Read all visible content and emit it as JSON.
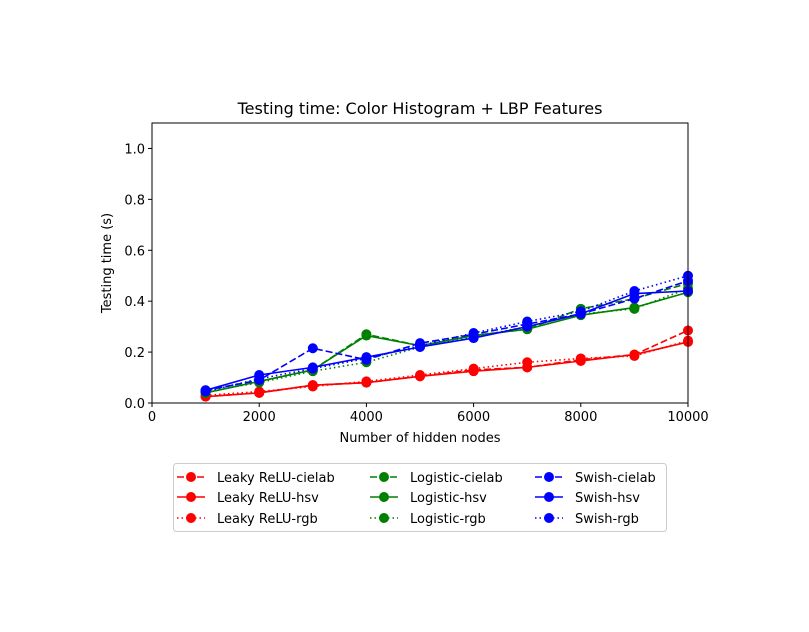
{
  "chart_data": {
    "type": "line",
    "title": "Testing time: Color Histogram + LBP Features",
    "xlabel": "Number of hidden nodes",
    "ylabel": "Testing time (s)",
    "xlim": [
      0,
      10000
    ],
    "ylim": [
      0,
      1.1
    ],
    "xticks": [
      "0",
      "2000",
      "4000",
      "6000",
      "8000",
      "10000"
    ],
    "yticks": [
      "0.0",
      "0.2",
      "0.4",
      "0.6",
      "0.8",
      "1.0"
    ],
    "grid": false,
    "legend_position": "bottom-center, below plot, 3 columns",
    "x": [
      1000,
      2000,
      3000,
      4000,
      5000,
      6000,
      7000,
      8000,
      9000,
      10000
    ],
    "series": [
      {
        "name": "Leaky ReLU-cielab",
        "color": "#ff0000",
        "linestyle": "dashed",
        "values": [
          0.025,
          0.04,
          0.07,
          0.08,
          0.105,
          0.13,
          0.14,
          0.17,
          0.19,
          0.285
        ]
      },
      {
        "name": "Leaky ReLU-hsv",
        "color": "#ff0000",
        "linestyle": "solid",
        "values": [
          0.025,
          0.04,
          0.07,
          0.08,
          0.105,
          0.125,
          0.14,
          0.165,
          0.19,
          0.24
        ]
      },
      {
        "name": "Leaky ReLU-rgb",
        "color": "#ff0000",
        "linestyle": "dotted",
        "values": [
          0.03,
          0.045,
          0.065,
          0.085,
          0.11,
          0.135,
          0.16,
          0.175,
          0.185,
          0.245
        ]
      },
      {
        "name": "Logistic-cielab",
        "color": "#008000",
        "linestyle": "dashed",
        "values": [
          0.04,
          0.085,
          0.13,
          0.27,
          0.225,
          0.265,
          0.29,
          0.37,
          0.41,
          0.47
        ]
      },
      {
        "name": "Logistic-hsv",
        "color": "#008000",
        "linestyle": "solid",
        "values": [
          0.04,
          0.085,
          0.13,
          0.265,
          0.225,
          0.265,
          0.29,
          0.345,
          0.375,
          0.435
        ]
      },
      {
        "name": "Logistic-rgb",
        "color": "#008000",
        "linestyle": "dotted",
        "values": [
          0.045,
          0.08,
          0.125,
          0.16,
          0.22,
          0.26,
          0.3,
          0.35,
          0.37,
          0.45
        ]
      },
      {
        "name": "Swish-cielab",
        "color": "#0000ff",
        "linestyle": "dashed",
        "values": [
          0.05,
          0.09,
          0.215,
          0.17,
          0.235,
          0.27,
          0.31,
          0.35,
          0.41,
          0.48
        ]
      },
      {
        "name": "Swish-hsv",
        "color": "#0000ff",
        "linestyle": "solid",
        "values": [
          0.05,
          0.11,
          0.14,
          0.18,
          0.22,
          0.255,
          0.3,
          0.35,
          0.43,
          0.44
        ]
      },
      {
        "name": "Swish-rgb",
        "color": "#0000ff",
        "linestyle": "dotted",
        "values": [
          0.045,
          0.095,
          0.135,
          0.175,
          0.225,
          0.275,
          0.32,
          0.36,
          0.44,
          0.5
        ]
      }
    ]
  }
}
